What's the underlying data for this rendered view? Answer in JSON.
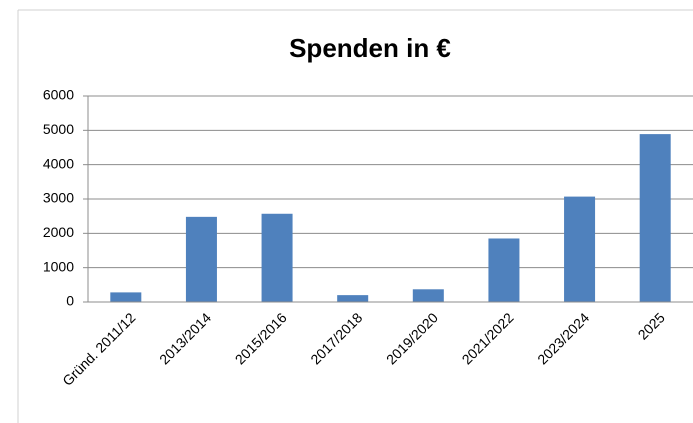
{
  "chart_data": {
    "type": "bar",
    "title": "Spenden in €",
    "categories": [
      "Gründ. 2011/12",
      "2013/2014",
      "2015/2016",
      "2017/2018",
      "2019/2020",
      "2021/2022",
      "2023/2024",
      "2025"
    ],
    "values": [
      280,
      2480,
      2570,
      200,
      370,
      1850,
      3070,
      4890
    ],
    "color": "#4f81bd",
    "ylim": [
      0,
      6000
    ],
    "yticks": [
      0,
      1000,
      2000,
      3000,
      4000,
      5000,
      6000
    ],
    "grid": true
  }
}
